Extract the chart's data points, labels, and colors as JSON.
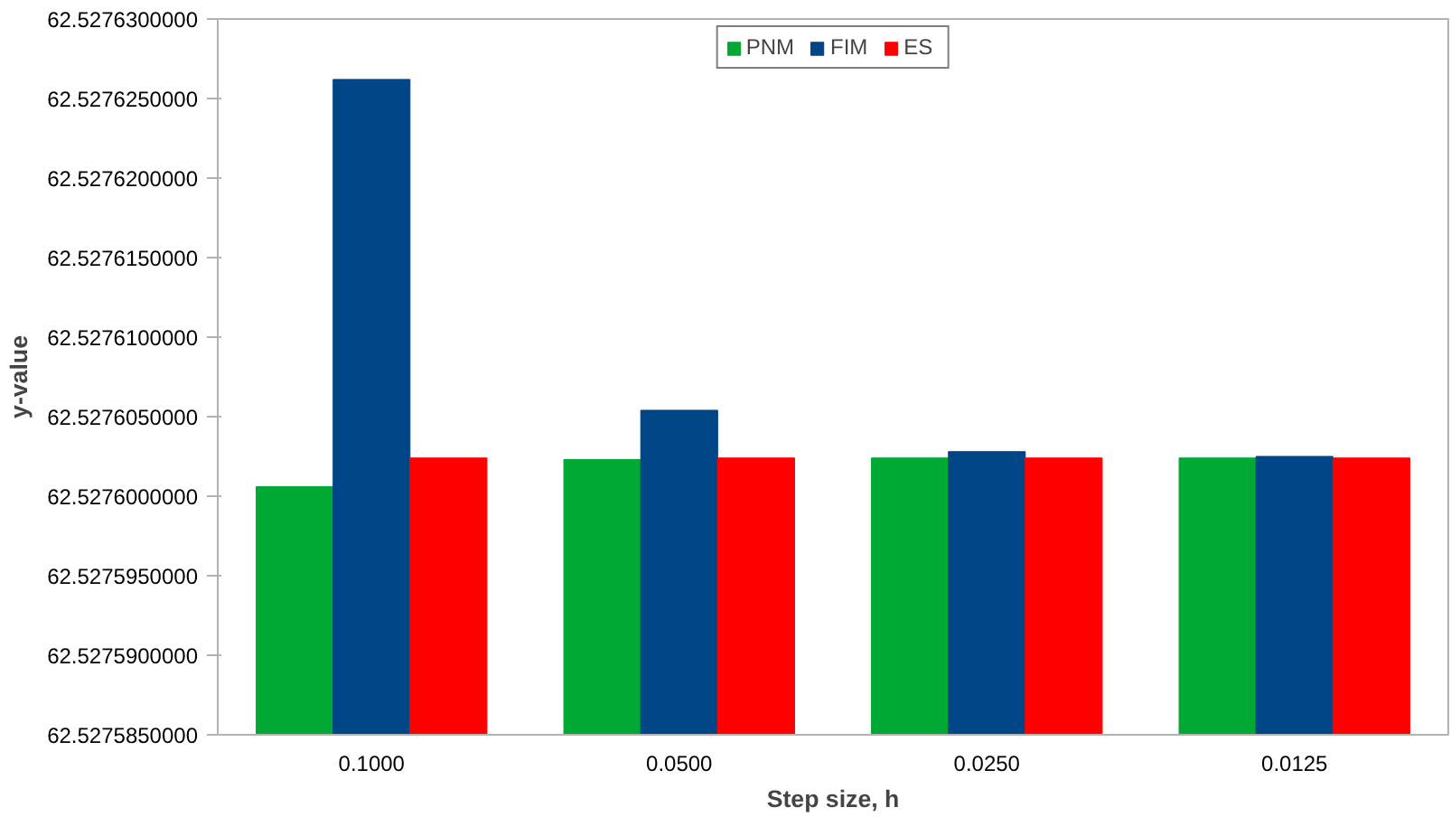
{
  "chart_data": {
    "type": "bar",
    "xlabel": "Step size, h",
    "ylabel": "y-value",
    "categories": [
      "0.1000",
      "0.0500",
      "0.0250",
      "0.0125"
    ],
    "series": [
      {
        "name": "PNM",
        "color": "#00a933",
        "values": [
          62.5276006,
          62.5276023,
          62.5276024,
          62.5276024
        ]
      },
      {
        "name": "FIM",
        "color": "#004586",
        "values": [
          62.5276262,
          62.5276054,
          62.5276028,
          62.5276025
        ]
      },
      {
        "name": "ES",
        "color": "#ff0000",
        "values": [
          62.5276024,
          62.5276024,
          62.5276024,
          62.5276024
        ]
      }
    ],
    "ylim": [
      62.527585,
      62.52763
    ],
    "yticks": [
      {
        "value": 62.527585,
        "label": "62.5275850000"
      },
      {
        "value": 62.52759,
        "label": "62.5275900000"
      },
      {
        "value": 62.527595,
        "label": "62.5275950000"
      },
      {
        "value": 62.5276,
        "label": "62.5276000000"
      },
      {
        "value": 62.527605,
        "label": "62.5276050000"
      },
      {
        "value": 62.52761,
        "label": "62.5276100000"
      },
      {
        "value": 62.527615,
        "label": "62.5276150000"
      },
      {
        "value": 62.52762,
        "label": "62.5276200000"
      },
      {
        "value": 62.527625,
        "label": "62.5276250000"
      },
      {
        "value": 62.52763,
        "label": "62.5276300000"
      }
    ],
    "grid": false,
    "legend": "top"
  }
}
